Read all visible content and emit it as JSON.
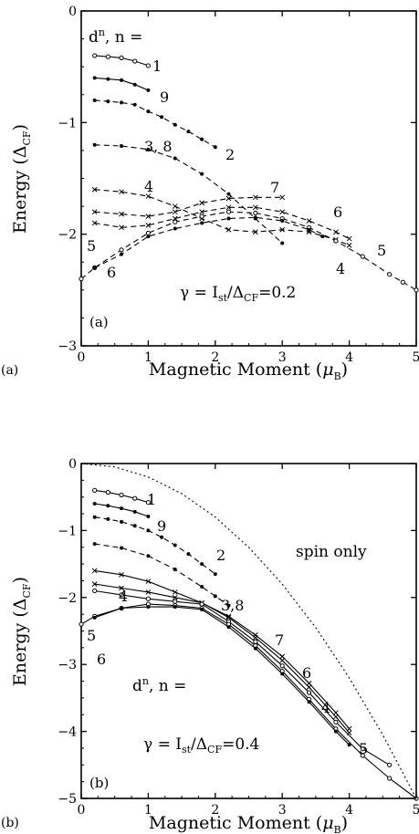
{
  "panels": [
    {
      "id": "a",
      "outer_tag": "(a)",
      "inner_tag": "(a)",
      "xlabel_main": "Magnetic Moment (",
      "xlabel_sym": "μ",
      "xlabel_sub": "B",
      "xlabel_close": ")",
      "ylabel_main": "Energy (",
      "ylabel_sym": "Δ",
      "ylabel_sub": "CF",
      "ylabel_close": ")",
      "annotation_dn": {
        "d": "d",
        "sup": "n",
        "rest": ", n ="
      },
      "annotation_gamma": {
        "lhs": "γ = I",
        "sub1": "st",
        "mid": "/Δ",
        "sub2": "CF",
        "rhs": "=0.2"
      },
      "xlim": [
        0,
        5
      ],
      "ylim": [
        -3,
        0
      ],
      "x_ticks": [
        "0",
        "1",
        "2",
        "3",
        "4",
        "5"
      ],
      "y_ticks": [
        "0",
        "−1",
        "−2",
        "−3"
      ],
      "y_tick_values": [
        0,
        -1,
        -2,
        -3
      ]
    },
    {
      "id": "b",
      "outer_tag": "(b)",
      "inner_tag": "(b)",
      "xlabel_main": "Magnetic Moment (",
      "xlabel_sym": "μ",
      "xlabel_sub": "B",
      "xlabel_close": ")",
      "ylabel_main": "Energy (",
      "ylabel_sym": "Δ",
      "ylabel_sub": "CF",
      "ylabel_close": ")",
      "annotation_dn": {
        "d": "d",
        "sup": "n",
        "rest": ", n ="
      },
      "annotation_gamma": {
        "lhs": "γ = I",
        "sub1": "st",
        "mid": "/Δ",
        "sub2": "CF",
        "rhs": "=0.4"
      },
      "spin_only_label": "spin only",
      "xlim": [
        0,
        5
      ],
      "ylim": [
        -5,
        0
      ],
      "x_ticks": [
        "0",
        "1",
        "2",
        "3",
        "4",
        "5"
      ],
      "y_ticks": [
        "0",
        "−1",
        "−2",
        "−3",
        "−4",
        "−5"
      ],
      "y_tick_values": [
        0,
        -1,
        -2,
        -3,
        -4,
        -5
      ]
    }
  ],
  "chart_data": [
    {
      "type": "line",
      "panel": "a",
      "xlabel": "Magnetic Moment (μB)",
      "ylabel": "Energy (ΔCF)",
      "xlim": [
        0,
        5
      ],
      "ylim": [
        -3,
        0
      ],
      "annotations": [
        "dn, n =",
        "γ = Ist/ΔCF=0.2",
        "(a)"
      ],
      "series": [
        {
          "name": "1",
          "marker": "open-circle",
          "dash": "solid",
          "x": [
            0.2,
            0.4,
            0.6,
            0.8,
            1.0
          ],
          "y": [
            -0.4,
            -0.41,
            -0.42,
            -0.45,
            -0.49
          ]
        },
        {
          "name": "9",
          "marker": "dot",
          "dash": "solid",
          "x": [
            0.2,
            0.4,
            0.6,
            0.8,
            1.0
          ],
          "y": [
            -0.6,
            -0.61,
            -0.62,
            -0.66,
            -0.71
          ]
        },
        {
          "name": "2",
          "marker": "dot",
          "dash": "dashed",
          "x": [
            0.2,
            0.4,
            0.6,
            0.8,
            1.0,
            1.2,
            1.4,
            1.6,
            1.8,
            2.0
          ],
          "y": [
            -0.8,
            -0.81,
            -0.82,
            -0.84,
            -0.9,
            -0.95,
            -1.02,
            -1.08,
            -1.15,
            -1.22
          ]
        },
        {
          "name": "3, 8",
          "marker": "dot",
          "dash": "dashed",
          "x": [
            0.2,
            0.6,
            1.0,
            1.4,
            1.8,
            2.2,
            2.6,
            3.0
          ],
          "y": [
            -1.2,
            -1.21,
            -1.24,
            -1.32,
            -1.46,
            -1.64,
            -1.86,
            -2.08
          ]
        },
        {
          "name": "4",
          "marker": "cross",
          "dash": "dashed",
          "x": [
            0.2,
            0.6,
            1.0,
            1.4,
            1.8,
            2.2,
            2.6,
            3.0,
            3.4,
            3.8,
            4.0
          ],
          "y": [
            -1.6,
            -1.62,
            -1.66,
            -1.75,
            -1.86,
            -1.96,
            -1.98,
            -1.96,
            -1.98,
            -2.05,
            -2.1
          ]
        },
        {
          "name": "7",
          "marker": "cross",
          "dash": "dashed",
          "x": [
            0.2,
            0.6,
            1.0,
            1.4,
            1.8,
            2.2,
            2.6,
            3.0
          ],
          "y": [
            -1.8,
            -1.82,
            -1.84,
            -1.8,
            -1.72,
            -1.68,
            -1.67,
            -1.67
          ]
        },
        {
          "name": "6",
          "marker": "cross",
          "dash": "dashed",
          "x": [
            0.2,
            0.6,
            1.0,
            1.4,
            1.8,
            2.2,
            2.6,
            3.0,
            3.4,
            3.8,
            4.0
          ],
          "y": [
            -1.9,
            -1.94,
            -1.92,
            -1.86,
            -1.8,
            -1.76,
            -1.76,
            -1.8,
            -1.88,
            -1.98,
            -2.04
          ]
        },
        {
          "name": "5",
          "marker": "open-circle",
          "dash": "dashed",
          "x": [
            0.0,
            0.2,
            0.6,
            1.0,
            1.4,
            1.8,
            2.2,
            2.6,
            3.0,
            3.4,
            3.8,
            4.2,
            4.6,
            4.8,
            5.0
          ],
          "y": [
            -2.4,
            -2.3,
            -2.14,
            -1.99,
            -1.89,
            -1.84,
            -1.8,
            -1.81,
            -1.86,
            -1.94,
            -2.06,
            -2.2,
            -2.36,
            -2.43,
            -2.5
          ]
        },
        {
          "name": "6",
          "marker": "dot",
          "dash": "dashed",
          "x": [
            0.2,
            0.6,
            1.0,
            1.4,
            1.8,
            2.2,
            2.6,
            3.0,
            3.4,
            3.6
          ],
          "y": [
            -2.3,
            -2.18,
            -2.02,
            -1.95,
            -1.9,
            -1.86,
            -1.85,
            -1.88,
            -1.96,
            -2.02
          ]
        }
      ],
      "curve_labels": [
        "1",
        "9",
        "2",
        "3, 8",
        "4",
        "7",
        "6",
        "5",
        "5",
        "6",
        "4"
      ]
    },
    {
      "type": "line",
      "panel": "b",
      "xlabel": "Magnetic Moment (μB)",
      "ylabel": "Energy (ΔCF)",
      "xlim": [
        0,
        5
      ],
      "ylim": [
        -5,
        0
      ],
      "annotations": [
        "spin only",
        "dn, n =",
        "γ = Ist/ΔCF=0.4",
        "(b)"
      ],
      "series": [
        {
          "name": "spin only",
          "marker": "none",
          "dash": "dotted",
          "x": [
            0,
            0.5,
            1,
            1.5,
            2,
            2.5,
            3,
            3.5,
            4,
            4.5,
            5
          ],
          "y": [
            0,
            -0.05,
            -0.2,
            -0.45,
            -0.8,
            -1.25,
            -1.8,
            -2.45,
            -3.2,
            -4.05,
            -5.0
          ]
        },
        {
          "name": "1",
          "marker": "open-circle",
          "dash": "solid",
          "x": [
            0.2,
            0.4,
            0.6,
            0.8,
            1.0
          ],
          "y": [
            -0.4,
            -0.43,
            -0.47,
            -0.52,
            -0.58
          ]
        },
        {
          "name": "9",
          "marker": "dot",
          "dash": "solid",
          "x": [
            0.2,
            0.4,
            0.6,
            0.8,
            1.0
          ],
          "y": [
            -0.6,
            -0.63,
            -0.67,
            -0.72,
            -0.79
          ]
        },
        {
          "name": "2",
          "marker": "dot",
          "dash": "dashed",
          "x": [
            0.2,
            0.4,
            0.6,
            0.8,
            1.0,
            1.2,
            1.4,
            1.6,
            1.8,
            2.0
          ],
          "y": [
            -0.8,
            -0.83,
            -0.87,
            -0.93,
            -1.0,
            -1.1,
            -1.22,
            -1.35,
            -1.5,
            -1.65
          ]
        },
        {
          "name": "3,8",
          "marker": "dot",
          "dash": "dashed",
          "x": [
            0.2,
            0.6,
            1.0,
            1.4,
            1.8,
            2.0,
            2.2
          ],
          "y": [
            -1.2,
            -1.26,
            -1.38,
            -1.58,
            -1.84,
            -1.98,
            -2.12
          ]
        },
        {
          "name": "4",
          "marker": "cross",
          "dash": "solid",
          "x": [
            0.2,
            0.6,
            1.0,
            1.4,
            1.8,
            2.2,
            2.6,
            3.0,
            3.4,
            3.8,
            4.0
          ],
          "y": [
            -1.6,
            -1.66,
            -1.76,
            -1.92,
            -2.08,
            -2.28,
            -2.56,
            -2.88,
            -3.28,
            -3.72,
            -3.96
          ]
        },
        {
          "name": "7",
          "marker": "cross",
          "dash": "solid",
          "x": [
            0.2,
            0.6,
            1.0,
            1.4,
            1.8,
            2.2,
            2.6,
            3.0,
            3.4,
            3.8,
            4.0
          ],
          "y": [
            -1.8,
            -1.86,
            -1.92,
            -2.0,
            -2.08,
            -2.3,
            -2.6,
            -2.94,
            -3.34,
            -3.78,
            -4.02
          ]
        },
        {
          "name": "6",
          "marker": "open-circle",
          "dash": "solid",
          "x": [
            0.2,
            0.6,
            1.0,
            1.4,
            1.8,
            2.2,
            2.6,
            3.0,
            3.4,
            3.8,
            4.2,
            4.6
          ],
          "y": [
            -1.9,
            -1.96,
            -2.02,
            -2.06,
            -2.1,
            -2.36,
            -2.66,
            -3.02,
            -3.42,
            -3.86,
            -4.26,
            -4.5
          ]
        },
        {
          "name": "5",
          "marker": "open-circle",
          "dash": "solid",
          "x": [
            0.0,
            0.2,
            0.6,
            1.0,
            1.4,
            1.8,
            2.2,
            2.6,
            3.0,
            3.4,
            3.8,
            4.2,
            4.6,
            5.0
          ],
          "y": [
            -2.4,
            -2.28,
            -2.16,
            -2.1,
            -2.12,
            -2.16,
            -2.4,
            -2.72,
            -3.1,
            -3.52,
            -3.96,
            -4.36,
            -4.7,
            -5.0
          ]
        },
        {
          "name": "6",
          "marker": "dot",
          "dash": "solid",
          "x": [
            0.2,
            0.6,
            1.0,
            1.4,
            1.8,
            2.2,
            2.6,
            3.0,
            3.4,
            3.8,
            4.0
          ],
          "y": [
            -2.3,
            -2.16,
            -2.14,
            -2.14,
            -2.18,
            -2.44,
            -2.76,
            -3.14,
            -3.56,
            -4.0,
            -4.2
          ]
        }
      ],
      "curve_labels": [
        "1",
        "9",
        "2",
        "3,8",
        "4",
        "7",
        "6",
        "5",
        "5",
        "6",
        "4"
      ]
    }
  ]
}
